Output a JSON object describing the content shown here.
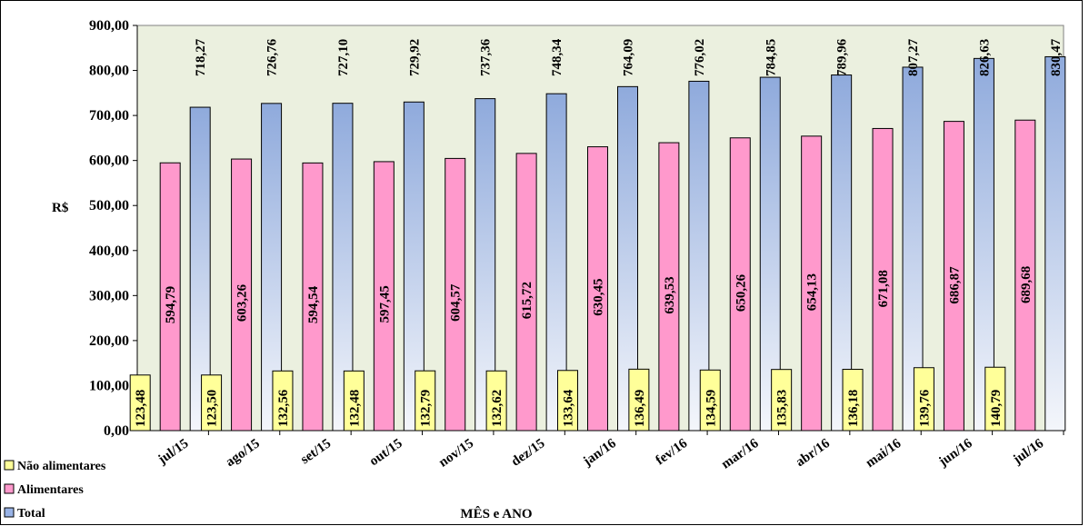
{
  "chart_data": {
    "type": "bar",
    "ylabel": "R$",
    "xlabel": "MÊS e ANO",
    "ylim": [
      0,
      900
    ],
    "yticks": [
      0,
      100,
      200,
      300,
      400,
      500,
      600,
      700,
      800,
      900
    ],
    "ytick_labels": [
      "0,00",
      "100,00",
      "200,00",
      "300,00",
      "400,00",
      "500,00",
      "600,00",
      "700,00",
      "800,00",
      "900,00"
    ],
    "categories": [
      "jul/15",
      "ago/15",
      "set/15",
      "out/15",
      "nov/15",
      "dez/15",
      "jan/16",
      "fev/16",
      "mar/16",
      "abr/16",
      "mai/16",
      "jun/16",
      "jul/16"
    ],
    "series": [
      {
        "name": "Não alimentares",
        "color": "#ffff99",
        "values": [
          123.48,
          123.5,
          132.56,
          132.48,
          132.79,
          132.62,
          133.64,
          136.49,
          134.59,
          135.83,
          136.18,
          139.76,
          140.79
        ],
        "labels": [
          "123,48",
          "123,50",
          "132,56",
          "132,48",
          "132,79",
          "132,62",
          "133,64",
          "136,49",
          "134,59",
          "135,83",
          "136,18",
          "139,76",
          "140,79"
        ]
      },
      {
        "name": "Alimentares",
        "color": "#ff99cc",
        "values": [
          594.79,
          603.26,
          594.54,
          597.45,
          604.57,
          615.72,
          630.45,
          639.53,
          650.26,
          654.13,
          671.08,
          686.87,
          689.68
        ],
        "labels": [
          "594,79",
          "603,26",
          "594,54",
          "597,45",
          "604,57",
          "615,72",
          "630,45",
          "639,53",
          "650,26",
          "654,13",
          "671,08",
          "686,87",
          "689,68"
        ]
      },
      {
        "name": "Total",
        "color": "#99b3e6",
        "values": [
          718.27,
          726.76,
          727.1,
          729.92,
          737.36,
          748.34,
          764.09,
          776.02,
          784.85,
          789.96,
          807.27,
          826.63,
          830.47
        ],
        "labels": [
          "718,27",
          "726,76",
          "727,10",
          "729,92",
          "737,36",
          "748,34",
          "764,09",
          "776,02",
          "784,85",
          "789,96",
          "807,27",
          "826,63",
          "830,47"
        ]
      }
    ],
    "plot_background": "#ebf0df",
    "grid": false,
    "legend_position": "bottom-left"
  }
}
